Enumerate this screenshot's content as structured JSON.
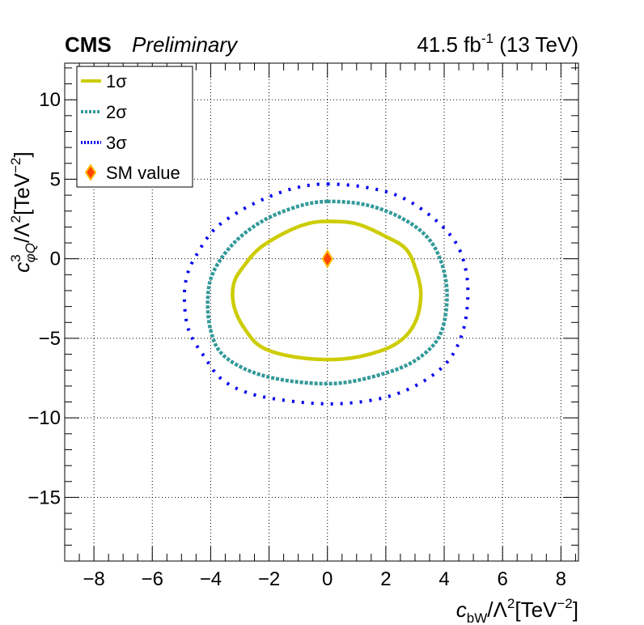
{
  "header": {
    "experiment": "CMS",
    "status": "Preliminary",
    "lumi_value": "41.5 fb",
    "lumi_exp": "-1",
    "energy": " (13 TeV)"
  },
  "axes": {
    "x_c": "c",
    "x_sub": "bW",
    "x_rest": "/Λ",
    "x_pow2": "2",
    "x_unit": "[TeV",
    "x_unit_exp": "−2",
    "x_close": "]",
    "y_c": "c",
    "y_sup": "3",
    "y_sub": "φQ",
    "y_rest": "/Λ",
    "y_pow2": "2",
    "y_unit": "[TeV",
    "y_unit_exp": "−2",
    "y_close": "]"
  },
  "colors": {
    "one_sigma": "#cccc00",
    "two_sigma": "#339999",
    "three_sigma": "#0000ee",
    "sm_fill": "#ff4400",
    "sm_edge": "#ffbb00",
    "grid": "#000000"
  },
  "chart_data": {
    "type": "scatter",
    "xlim": [
      -9,
      8.6
    ],
    "ylim": [
      -19,
      12.3
    ],
    "x_ticks": [
      -8,
      -6,
      -4,
      -2,
      0,
      2,
      4,
      6,
      8
    ],
    "y_ticks": [
      -15,
      -10,
      -5,
      0,
      5,
      10
    ],
    "x_tick_labels": [
      "−8",
      "−6",
      "−4",
      "−2",
      "0",
      "2",
      "4",
      "6",
      "8"
    ],
    "y_tick_labels": [
      "−15",
      "−10",
      "−5",
      "0",
      "5",
      "10"
    ],
    "grid": true,
    "legend_position": "top-left",
    "series": [
      {
        "name": "1σ",
        "style": "solid",
        "contour": [
          [
            0,
            2.35
          ],
          [
            1.0,
            2.2
          ],
          [
            2.0,
            1.4
          ],
          [
            2.7,
            0.6
          ],
          [
            3.05,
            -0.8
          ],
          [
            3.2,
            -2.2
          ],
          [
            3.05,
            -3.8
          ],
          [
            2.6,
            -5.0
          ],
          [
            1.8,
            -5.8
          ],
          [
            0.5,
            -6.3
          ],
          [
            -1.0,
            -6.2
          ],
          [
            -2.2,
            -5.6
          ],
          [
            -2.8,
            -4.5
          ],
          [
            -3.2,
            -3.0
          ],
          [
            -3.2,
            -1.5
          ],
          [
            -2.8,
            -0.3
          ],
          [
            -2.3,
            0.7
          ],
          [
            -1.5,
            1.6
          ],
          [
            -0.7,
            2.2
          ],
          [
            0,
            2.35
          ]
        ]
      },
      {
        "name": "2σ",
        "style": "dashed",
        "contour": [
          [
            0,
            3.6
          ],
          [
            1.3,
            3.4
          ],
          [
            2.5,
            2.6
          ],
          [
            3.4,
            1.4
          ],
          [
            3.9,
            -0.2
          ],
          [
            4.1,
            -2.3
          ],
          [
            3.9,
            -4.6
          ],
          [
            3.3,
            -6.0
          ],
          [
            2.3,
            -7.0
          ],
          [
            0.5,
            -7.8
          ],
          [
            -1.2,
            -7.7
          ],
          [
            -2.6,
            -7.1
          ],
          [
            -3.6,
            -6.0
          ],
          [
            -4.0,
            -4.5
          ],
          [
            -4.1,
            -2.5
          ],
          [
            -3.9,
            -0.8
          ],
          [
            -3.2,
            1.0
          ],
          [
            -2.2,
            2.4
          ],
          [
            -1.0,
            3.3
          ],
          [
            0,
            3.6
          ]
        ]
      },
      {
        "name": "3σ",
        "style": "dotted",
        "contour": [
          [
            0,
            4.7
          ],
          [
            1.3,
            4.5
          ],
          [
            2.5,
            3.9
          ],
          [
            3.6,
            2.6
          ],
          [
            4.4,
            1.0
          ],
          [
            4.75,
            -0.8
          ],
          [
            4.8,
            -2.8
          ],
          [
            4.6,
            -4.8
          ],
          [
            4.1,
            -6.5
          ],
          [
            3.2,
            -7.8
          ],
          [
            2.0,
            -8.7
          ],
          [
            0.5,
            -9.1
          ],
          [
            -1.0,
            -9.0
          ],
          [
            -2.6,
            -8.5
          ],
          [
            -3.6,
            -7.6
          ],
          [
            -4.2,
            -6.2
          ],
          [
            -4.75,
            -4.5
          ],
          [
            -4.9,
            -2.5
          ],
          [
            -4.8,
            -1.0
          ],
          [
            -4.5,
            0.2
          ],
          [
            -3.9,
            1.8
          ],
          [
            -3.0,
            3.0
          ],
          [
            -2.0,
            3.9
          ],
          [
            -1.0,
            4.5
          ],
          [
            0,
            4.7
          ]
        ]
      },
      {
        "name": "SM value",
        "style": "marker",
        "points": [
          [
            0,
            0
          ]
        ]
      }
    ]
  }
}
